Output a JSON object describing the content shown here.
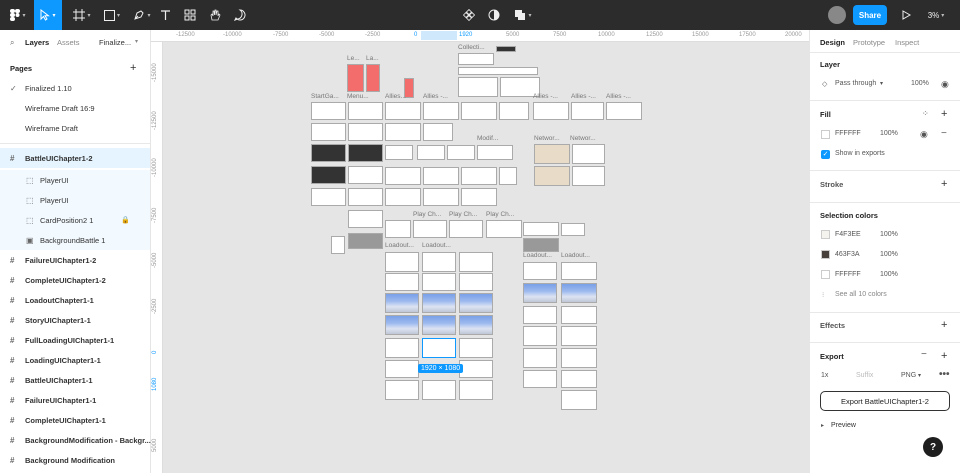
{
  "toolbar": {
    "share_label": "Share",
    "zoom": "3%",
    "selection_dims": "1920 × 1080"
  },
  "left_panel": {
    "tabs": [
      "Layers",
      "Assets",
      "Finalize..."
    ],
    "pages_title": "Pages",
    "pages": [
      {
        "label": "Finalized 1.10",
        "current": true
      },
      {
        "label": "Wireframe Draft 16:9",
        "current": false
      },
      {
        "label": "Wireframe Draft",
        "current": false
      }
    ],
    "layers": [
      {
        "label": "BattleUIChapter1-2",
        "level": 0,
        "selected": true
      },
      {
        "label": "PlayerUI",
        "level": 1
      },
      {
        "label": "PlayerUI",
        "level": 1
      },
      {
        "label": "CardPosition2 1",
        "level": 1,
        "locked": true
      },
      {
        "label": "BackgroundBattle 1",
        "level": 1
      },
      {
        "label": "FailureUIChapter1-2",
        "level": 0
      },
      {
        "label": "CompleteUIChapter1-2",
        "level": 0
      },
      {
        "label": "LoadoutChapter1-1",
        "level": 0
      },
      {
        "label": "StoryUIChapter1-1",
        "level": 0
      },
      {
        "label": "FullLoadingUIChapter1-1",
        "level": 0
      },
      {
        "label": "LoadingUIChapter1-1",
        "level": 0
      },
      {
        "label": "BattleUIChapter1-1",
        "level": 0
      },
      {
        "label": "FailureUIChapter1-1",
        "level": 0
      },
      {
        "label": "CompleteUIChapter1-1",
        "level": 0
      },
      {
        "label": "BackgroundModification - Backgr...",
        "level": 0
      },
      {
        "label": "Background Modification",
        "level": 0
      }
    ]
  },
  "ruler": {
    "top": [
      "-12500",
      "-10000",
      "-7500",
      "-5000",
      "-2500",
      "0",
      "1920",
      "5000",
      "7500",
      "10000",
      "12500",
      "15000",
      "17500",
      "20000"
    ],
    "left": [
      "-15000",
      "-12500",
      "-10000",
      "-7500",
      "-5000",
      "-2500",
      "0",
      "1080",
      "5000"
    ]
  },
  "canvas_labels": [
    "Collecti...",
    "Le...",
    "La...",
    "StartGa...",
    "Menu...",
    "Allies...",
    "Allies -...",
    "Allies -...",
    "Allies -...",
    "Allies -...",
    "Networ...",
    "Networ...",
    "Modif...",
    "Play Ch...",
    "Play Ch...",
    "Play Ch...",
    "Loadout...",
    "Loadout...",
    "Loadout...",
    "Loadout..."
  ],
  "right_panel": {
    "tabs": [
      "Design",
      "Prototype",
      "Inspect"
    ],
    "layer_title": "Layer",
    "layer_blend": "Pass through",
    "layer_opacity": "100%",
    "fill_title": "Fill",
    "fill_hex": "FFFFFF",
    "fill_opacity": "100%",
    "show_exports": "Show in exports",
    "stroke_title": "Stroke",
    "selection_colors_title": "Selection colors",
    "selection_colors": [
      {
        "hex": "F4F3EE",
        "opacity": "100%",
        "color": "#F4F3EE"
      },
      {
        "hex": "463F3A",
        "opacity": "100%",
        "color": "#463F3A"
      },
      {
        "hex": "FFFFFF",
        "opacity": "100%",
        "color": "#FFFFFF"
      }
    ],
    "see_all_colors": "See all 10 colors",
    "effects_title": "Effects",
    "export_title": "Export",
    "export_scale": "1x",
    "export_suffix_placeholder": "Suffix",
    "export_format": "PNG",
    "export_button": "Export BattleUIChapter1-2",
    "preview_label": "Preview"
  },
  "accent_color": "#0d99ff"
}
